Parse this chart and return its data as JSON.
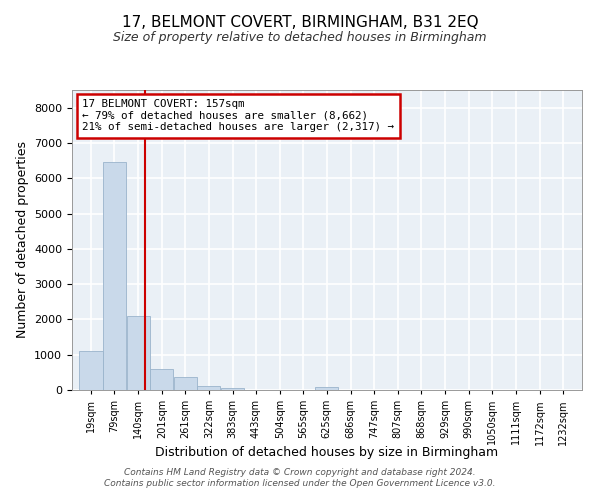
{
  "title1": "17, BELMONT COVERT, BIRMINGHAM, B31 2EQ",
  "title2": "Size of property relative to detached houses in Birmingham",
  "xlabel": "Distribution of detached houses by size in Birmingham",
  "ylabel": "Number of detached properties",
  "annotation_line1": "17 BELMONT COVERT: 157sqm",
  "annotation_line2": "← 79% of detached houses are smaller (8,662)",
  "annotation_line3": "21% of semi-detached houses are larger (2,317) →",
  "footer1": "Contains HM Land Registry data © Crown copyright and database right 2024.",
  "footer2": "Contains public sector information licensed under the Open Government Licence v3.0.",
  "bar_color": "#c9d9ea",
  "bar_edge_color": "#9ab4cc",
  "vline_color": "#cc0000",
  "annotation_box_color": "#cc0000",
  "bg_color": "#eaf0f6",
  "grid_color": "#ffffff",
  "categories": [
    "19sqm",
    "79sqm",
    "140sqm",
    "201sqm",
    "261sqm",
    "322sqm",
    "383sqm",
    "443sqm",
    "504sqm",
    "565sqm",
    "625sqm",
    "686sqm",
    "747sqm",
    "807sqm",
    "868sqm",
    "929sqm",
    "990sqm",
    "1050sqm",
    "1111sqm",
    "1172sqm",
    "1232sqm"
  ],
  "bin_centers": [
    19,
    79,
    140,
    201,
    261,
    322,
    383,
    443,
    504,
    565,
    625,
    686,
    747,
    807,
    868,
    929,
    990,
    1050,
    1111,
    1172,
    1232
  ],
  "bar_heights": [
    1100,
    6450,
    2100,
    600,
    370,
    120,
    50,
    5,
    0,
    0,
    80,
    0,
    0,
    0,
    0,
    0,
    0,
    0,
    0,
    0,
    0
  ],
  "bin_width": 61,
  "vline_x": 157,
  "ylim": [
    0,
    8500
  ],
  "yticks": [
    0,
    1000,
    2000,
    3000,
    4000,
    5000,
    6000,
    7000,
    8000
  ],
  "title1_fontsize": 11,
  "title2_fontsize": 9,
  "xlabel_fontsize": 9,
  "ylabel_fontsize": 9,
  "tick_fontsize": 8,
  "xtick_fontsize": 7
}
